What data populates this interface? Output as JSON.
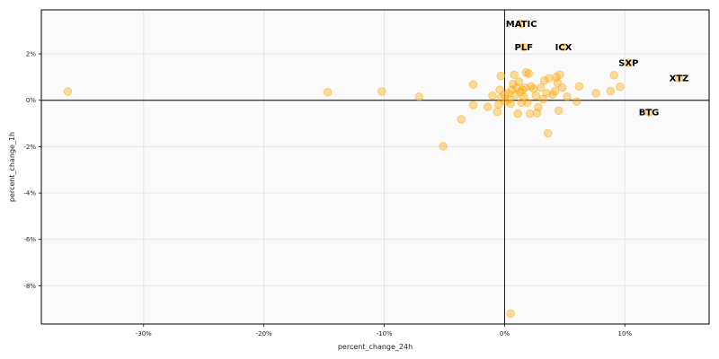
{
  "chart_data": {
    "type": "scatter",
    "title": "",
    "xlabel": "percent_change_24h",
    "ylabel": "percent_change_1h",
    "xlim": [
      -38.5,
      17
    ],
    "ylim": [
      -9.65,
      3.9
    ],
    "grid": true,
    "x_ticks": [
      -30,
      -20,
      -10,
      0,
      10
    ],
    "x_tick_labels": [
      "-30%",
      "-20%",
      "-10%",
      "0%",
      "10%"
    ],
    "y_ticks": [
      2,
      0,
      -2,
      -4,
      -6,
      -8
    ],
    "y_tick_labels": [
      "2%",
      "0%",
      "-2%",
      "-4%",
      "-6%",
      "-8%"
    ],
    "reference_lines": {
      "x": 0,
      "y": 0
    },
    "colors": {
      "point": "#ffa500",
      "background": "#fafafa",
      "grid": "#e6e6e6",
      "axis": "#000000"
    },
    "points": [
      {
        "x": -36.3,
        "y": 0.38
      },
      {
        "x": -14.7,
        "y": 0.35
      },
      {
        "x": -10.2,
        "y": 0.38
      },
      {
        "x": -7.1,
        "y": 0.15
      },
      {
        "x": -5.1,
        "y": -1.98
      },
      {
        "x": -3.6,
        "y": -0.82
      },
      {
        "x": -2.6,
        "y": 0.68
      },
      {
        "x": -2.6,
        "y": -0.2
      },
      {
        "x": -1.4,
        "y": -0.28
      },
      {
        "x": -1.0,
        "y": 0.2
      },
      {
        "x": -0.6,
        "y": -0.5
      },
      {
        "x": -0.5,
        "y": -0.18
      },
      {
        "x": -0.4,
        "y": 0.45
      },
      {
        "x": -0.3,
        "y": 1.05
      },
      {
        "x": -0.3,
        "y": 0.1
      },
      {
        "x": 0.0,
        "y": 0.25
      },
      {
        "x": 0.1,
        "y": -0.05
      },
      {
        "x": 0.3,
        "y": 0.3
      },
      {
        "x": 0.4,
        "y": 0.05
      },
      {
        "x": 0.5,
        "y": -0.15
      },
      {
        "x": 0.6,
        "y": 0.45
      },
      {
        "x": 0.7,
        "y": 0.7
      },
      {
        "x": 0.8,
        "y": 1.1
      },
      {
        "x": 0.9,
        "y": 0.25
      },
      {
        "x": 1.0,
        "y": 0.55
      },
      {
        "x": 1.1,
        "y": -0.58
      },
      {
        "x": 1.2,
        "y": 0.8
      },
      {
        "x": 1.3,
        "y": 0.35
      },
      {
        "x": 1.4,
        "y": -0.1
      },
      {
        "x": 1.5,
        "y": 0.45
      },
      {
        "x": 1.6,
        "y": 0.15
      },
      {
        "x": 1.7,
        "y": 0.55
      },
      {
        "x": 1.8,
        "y": 1.2
      },
      {
        "x": 1.9,
        "y": -0.1
      },
      {
        "x": 2.0,
        "y": 1.15
      },
      {
        "x": 2.1,
        "y": -0.58
      },
      {
        "x": 2.2,
        "y": 0.6
      },
      {
        "x": 2.4,
        "y": 0.5
      },
      {
        "x": 2.6,
        "y": 0.2
      },
      {
        "x": 2.7,
        "y": -0.55
      },
      {
        "x": 2.8,
        "y": -0.3
      },
      {
        "x": 3.0,
        "y": 0.55
      },
      {
        "x": 3.2,
        "y": 0.05
      },
      {
        "x": 3.3,
        "y": 0.85
      },
      {
        "x": 3.5,
        "y": 0.3
      },
      {
        "x": 3.6,
        "y": -1.42
      },
      {
        "x": 3.7,
        "y": 0.95
      },
      {
        "x": 4.0,
        "y": 0.25
      },
      {
        "x": 4.2,
        "y": 0.4
      },
      {
        "x": 4.3,
        "y": 1.0
      },
      {
        "x": 4.4,
        "y": 0.75
      },
      {
        "x": 4.5,
        "y": -0.45
      },
      {
        "x": 4.6,
        "y": 1.1
      },
      {
        "x": 4.8,
        "y": 0.55
      },
      {
        "x": 5.2,
        "y": 0.15
      },
      {
        "x": 6.0,
        "y": -0.05
      },
      {
        "x": 6.2,
        "y": 0.6
      },
      {
        "x": 7.6,
        "y": 0.3
      },
      {
        "x": 8.8,
        "y": 0.4
      },
      {
        "x": 9.1,
        "y": 1.08
      },
      {
        "x": 9.6,
        "y": 0.58
      },
      {
        "x": 0.5,
        "y": -9.2
      },
      {
        "x": 1.4,
        "y": 3.3,
        "label": "MATIC"
      },
      {
        "x": 1.6,
        "y": 2.3,
        "label": "PLF"
      },
      {
        "x": 4.9,
        "y": 2.3,
        "label": "ICX"
      },
      {
        "x": 10.3,
        "y": 1.62,
        "label": "SXP"
      },
      {
        "x": 14.5,
        "y": 0.95,
        "label": "XTZ"
      },
      {
        "x": 12.0,
        "y": -0.52,
        "label": "BTG"
      }
    ]
  }
}
